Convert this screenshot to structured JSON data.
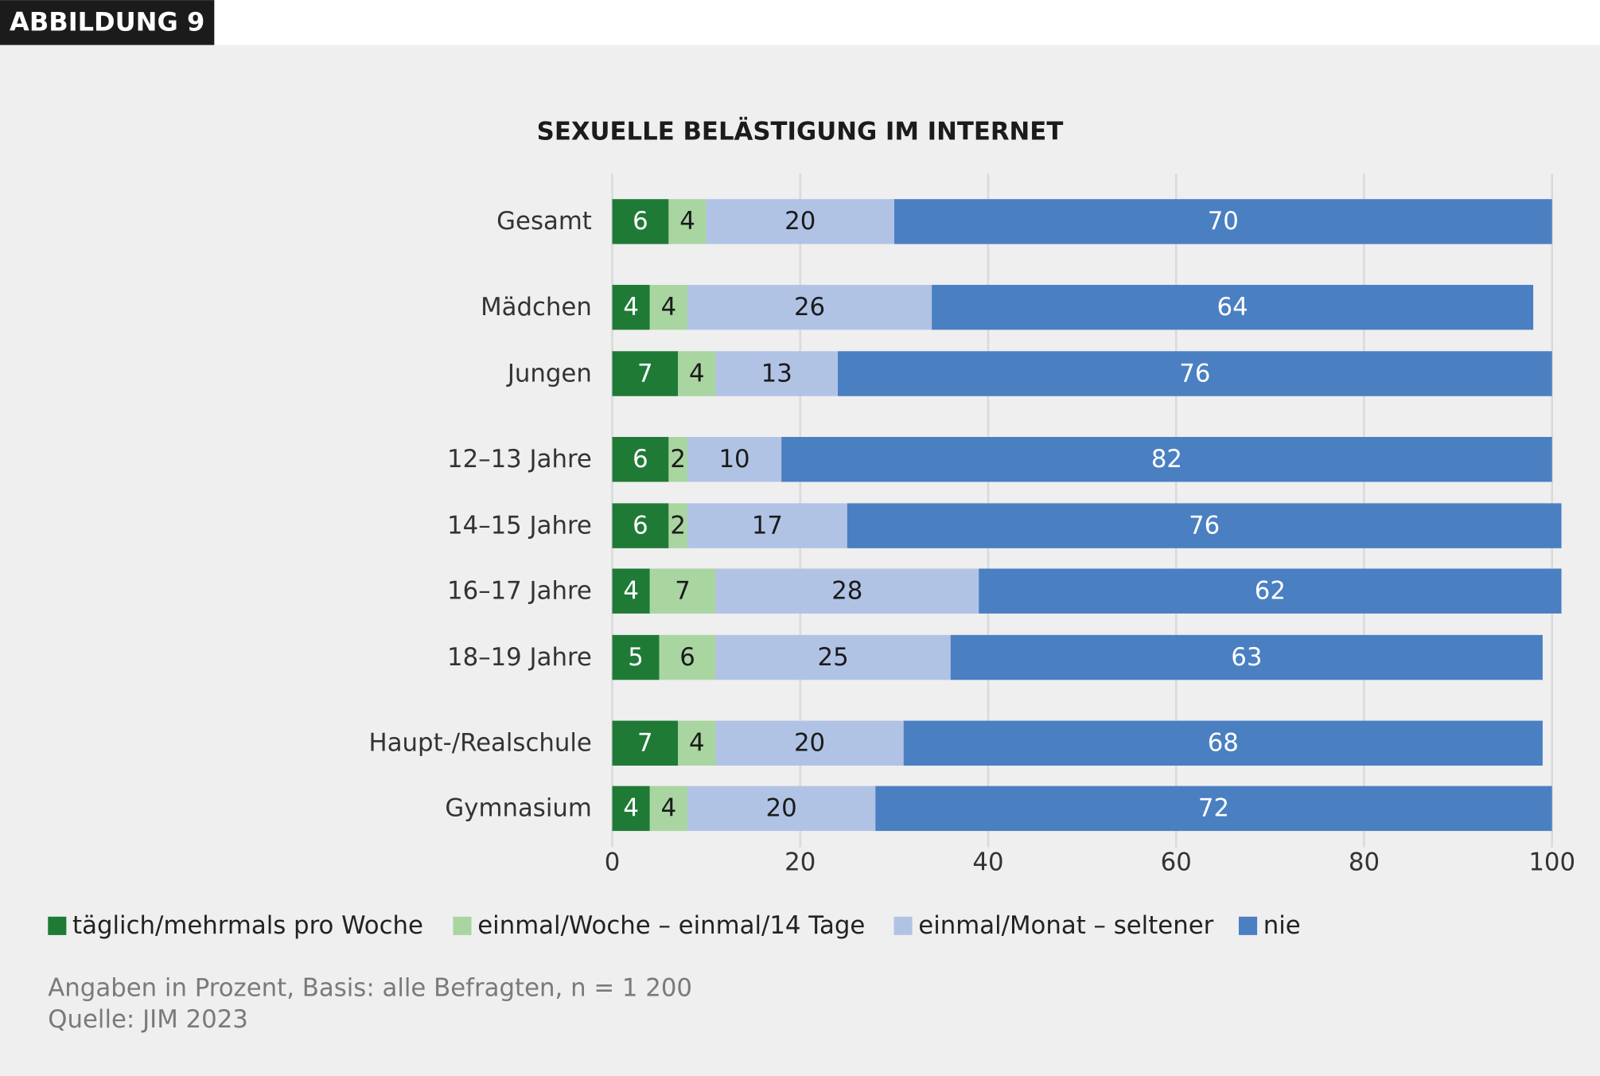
{
  "chart_data": {
    "type": "stacked-barh",
    "badge": "ABBILDUNG 9",
    "title": "SEXUELLE BELÄSTIGUNG IM INTERNET",
    "categories": [
      "Gesamt",
      "Mädchen",
      "Jungen",
      "12–13 Jahre",
      "14–15 Jahre",
      "16–17 Jahre",
      "18–19 Jahre",
      "Haupt-/Realschule",
      "Gymnasium"
    ],
    "series": [
      {
        "name": "täglich/mehrmals pro Woche",
        "color": "#1f7a36",
        "values": [
          6,
          4,
          7,
          6,
          6,
          4,
          5,
          7,
          4
        ]
      },
      {
        "name": "einmal/Woche – einmal/14 Tage",
        "color": "#a9d5a1",
        "values": [
          4,
          4,
          4,
          2,
          2,
          7,
          6,
          4,
          4
        ]
      },
      {
        "name": "einmal/Monat – seltener",
        "color": "#b1c3e5",
        "values": [
          20,
          26,
          13,
          10,
          17,
          28,
          25,
          20,
          20
        ]
      },
      {
        "name": "nie",
        "color": "#4a7fc2",
        "values": [
          70,
          64,
          76,
          82,
          76,
          62,
          63,
          68,
          72
        ]
      }
    ],
    "xlim": [
      0,
      100
    ],
    "xticks": [
      0,
      20,
      40,
      60,
      80,
      100
    ],
    "grid": true,
    "notes": [
      "Angaben in Prozent, Basis: alle Befragten, n = 1 200",
      "Quelle: JIM 2023"
    ]
  }
}
